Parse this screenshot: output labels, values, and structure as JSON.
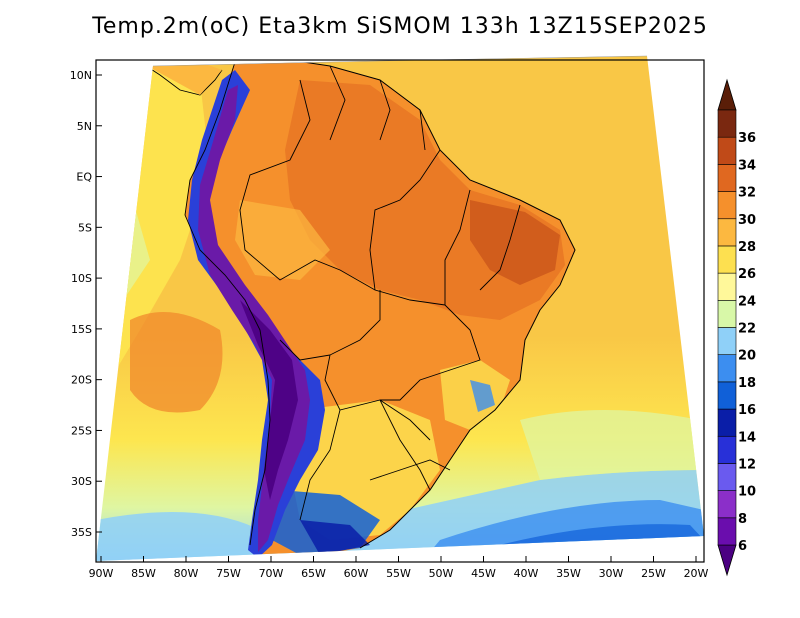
{
  "title": "Temp.2m(oC) Eta3km SiSMOM 133h 13Z15SEP2025",
  "map": {
    "variable": "Temp.2m",
    "units": "oC",
    "model": "Eta3km SiSMOM",
    "forecast_hour": "133h",
    "valid_time": "13Z15SEP2025",
    "lat_ticks": [
      "10N",
      "5N",
      "EQ",
      "5S",
      "10S",
      "15S",
      "20S",
      "25S",
      "30S",
      "35S"
    ],
    "lon_ticks": [
      "90W",
      "85W",
      "80W",
      "75W",
      "70W",
      "65W",
      "60W",
      "55W",
      "50W",
      "45W",
      "40W",
      "35W",
      "30W",
      "25W",
      "20W"
    ]
  },
  "colorbar": {
    "levels": [
      "6",
      "8",
      "10",
      "12",
      "14",
      "16",
      "18",
      "20",
      "22",
      "24",
      "26",
      "28",
      "30",
      "32",
      "34",
      "36"
    ],
    "colors": [
      "#6a0dad",
      "#8b2fc9",
      "#6a5aef",
      "#2830d8",
      "#0a1ea8",
      "#1060d8",
      "#3c8ef0",
      "#8fd0f8",
      "#d8f8a8",
      "#fff89a",
      "#fde050",
      "#fcb840",
      "#f5902c",
      "#e06820",
      "#c04a18",
      "#7a2810"
    ],
    "low_end_color": "#4b0082",
    "high_end_color": "#5a1e08"
  },
  "palette": {
    "ocean_warm": "#f9c746",
    "ocean_mid": "#fde64f",
    "ocean_cool": "#dff6a2",
    "ocean_cold": "#8fd0f8",
    "land_hot": "#f08a2c",
    "land_very_hot": "#d4601e",
    "andes": "#6a1aa8",
    "andes_edge": "#2a40d8",
    "border": "#000000"
  }
}
